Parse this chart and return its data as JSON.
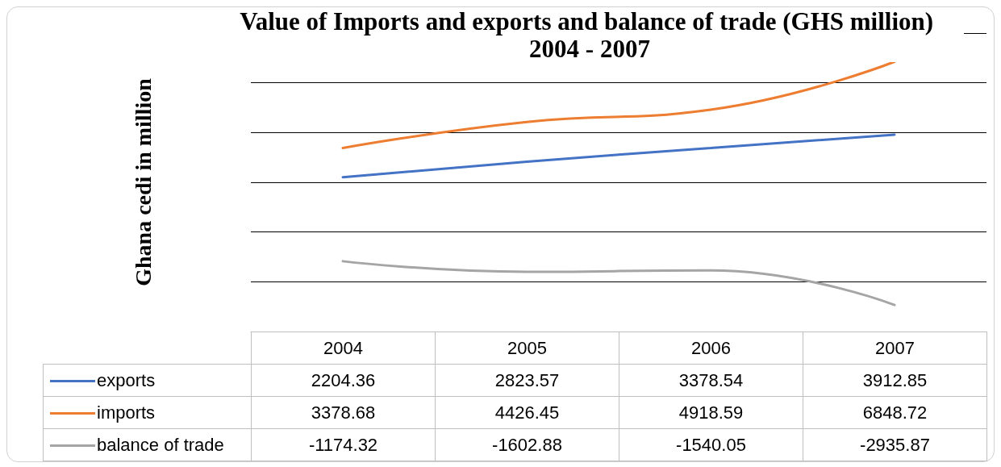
{
  "chart_data": {
    "type": "line",
    "title": "Value of Imports and exports and balance of trade (GHS million) 2004 - 2007",
    "ylabel": "Ghana cedi in million",
    "categories": [
      "2004",
      "2005",
      "2006",
      "2007"
    ],
    "series": [
      {
        "name": "exports",
        "color": "#4472c4",
        "values": [
          2204.36,
          2823.57,
          3378.54,
          3912.85
        ]
      },
      {
        "name": "imports",
        "color": "#ed7d31",
        "values": [
          3378.68,
          4426.45,
          4918.59,
          6848.72
        ]
      },
      {
        "name": "balance of trade",
        "color": "#a5a5a5",
        "values": [
          -1174.32,
          -1602.88,
          -1540.05,
          -2935.87
        ]
      }
    ],
    "grid": "y",
    "tick_labels": "x",
    "data_labels": true,
    "marker": "none",
    "legend": "bottom left"
  }
}
